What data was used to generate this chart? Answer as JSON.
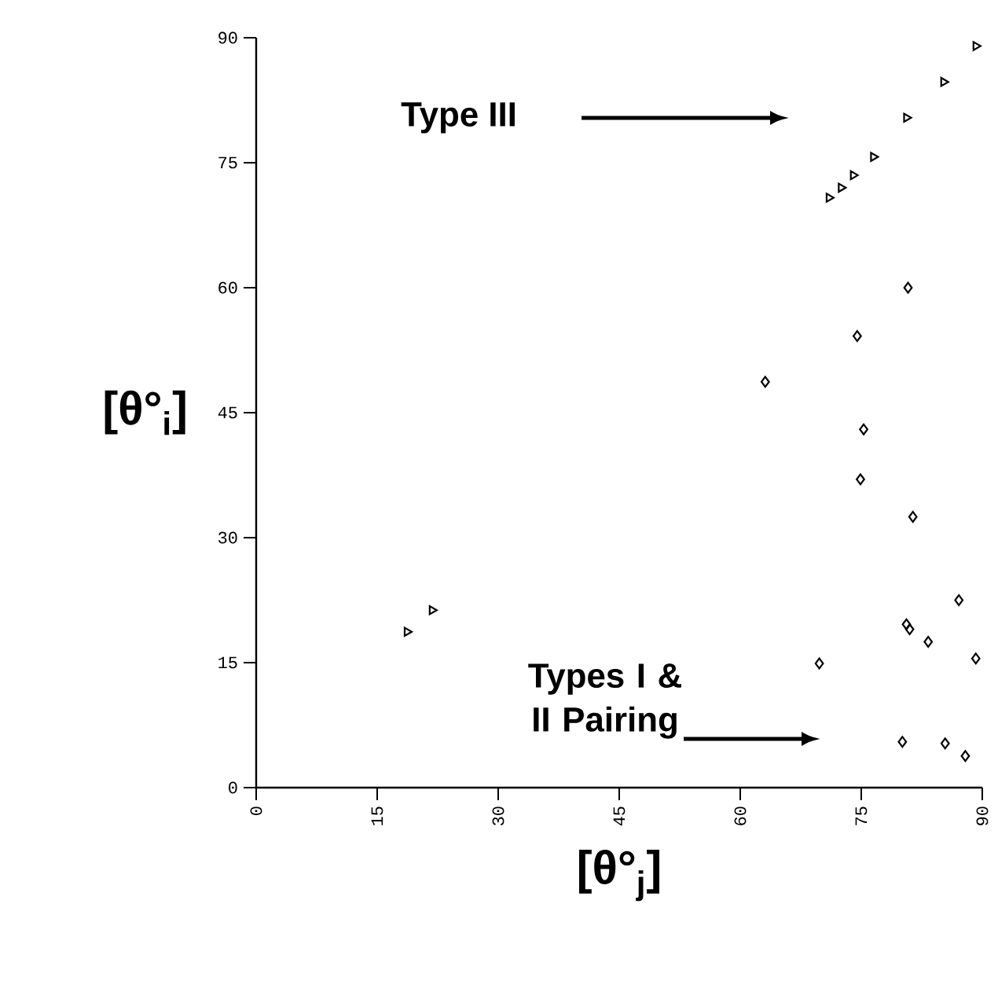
{
  "chart_data": {
    "type": "scatter",
    "xlabel": "[θ°$_{j}$]",
    "ylabel": "[θ°$_{i}$]",
    "xlim": [
      0,
      90
    ],
    "ylim": [
      0,
      90
    ],
    "xticks": [
      0,
      15,
      30,
      45,
      60,
      75,
      90
    ],
    "yticks": [
      0,
      15,
      30,
      45,
      60,
      75,
      90
    ],
    "annotations": [
      "Type III",
      "Types I & II Pairing"
    ],
    "series": [
      {
        "color": "#000000",
        "marker": "triangle",
        "x": [
          18.7,
          21.8,
          71,
          72.5,
          74,
          76.5,
          80.6,
          85.2,
          89.2
        ],
        "values": [
          18.7,
          21.3,
          70.8,
          72,
          73.5,
          75.7,
          80.4,
          84.7,
          89
        ]
      },
      {
        "color": "#000000",
        "marker": "diamond",
        "x": [
          80.8,
          74.5,
          63.1,
          75.3,
          74.9,
          81.4,
          87.1,
          80.6,
          81,
          83.3,
          89.2,
          69.8,
          80.1,
          85.4,
          87.9
        ],
        "values": [
          60,
          54.2,
          48.7,
          43,
          37,
          32.5,
          22.5,
          19.6,
          19,
          17.5,
          15.5,
          14.9,
          5.5,
          5.3,
          3.8
        ]
      }
    ]
  }
}
